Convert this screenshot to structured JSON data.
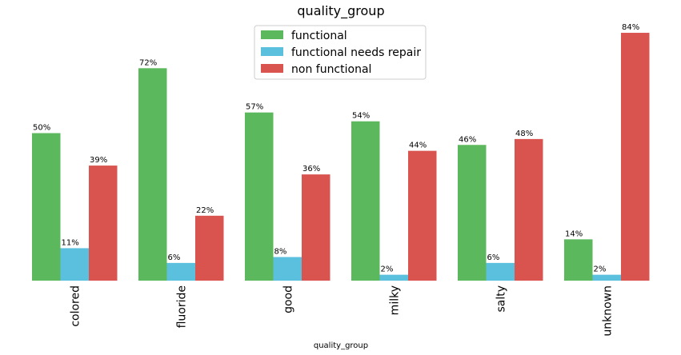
{
  "chart_data": {
    "type": "bar",
    "title": "quality_group",
    "xlabel": "quality_group",
    "ylabel": "",
    "categories": [
      "colored",
      "fluoride",
      "good",
      "milky",
      "salty",
      "unknown"
    ],
    "series": [
      {
        "name": "functional",
        "color": "#5cb85c",
        "values": [
          50,
          72,
          57,
          54,
          46,
          14
        ]
      },
      {
        "name": "functional needs repair",
        "color": "#5bc0de",
        "values": [
          11,
          6,
          8,
          2,
          6,
          2
        ]
      },
      {
        "name": "non functional",
        "color": "#d9534f",
        "values": [
          39,
          22,
          36,
          44,
          48,
          84
        ]
      }
    ],
    "value_suffix": "%",
    "ylim": [
      0,
      84
    ],
    "grid": false,
    "legend_position": "top-center"
  }
}
